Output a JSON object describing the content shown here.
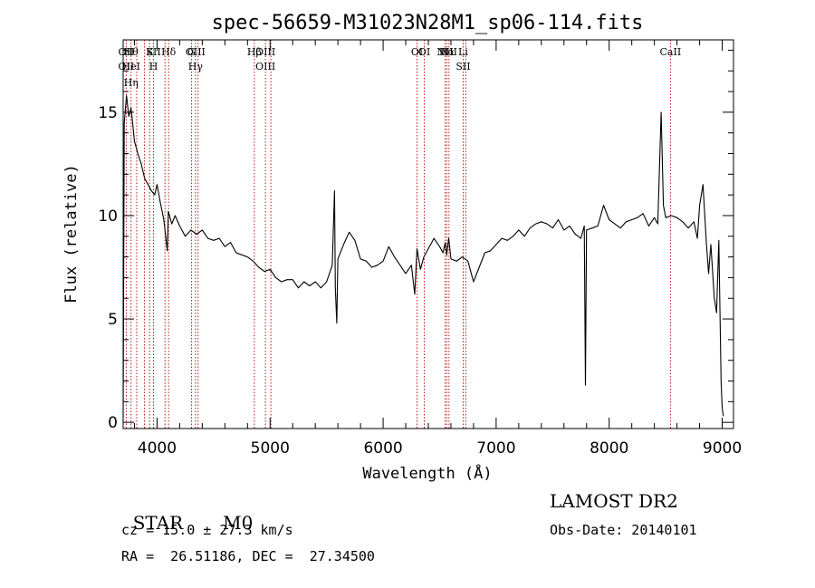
{
  "chart_data": {
    "type": "line",
    "title": "spec-56659-M31023N28M1_sp06-114.fits",
    "xlabel": "Wavelength (Å)",
    "ylabel": "Flux (relative)",
    "xlim": [
      3700,
      9100
    ],
    "ylim": [
      -0.3,
      18.5
    ],
    "x_ticks": [
      4000,
      5000,
      6000,
      7000,
      8000,
      9000
    ],
    "y_ticks": [
      0,
      5,
      10,
      15
    ],
    "series": [
      {
        "x": [
          3700,
          3710,
          3730,
          3750,
          3770,
          3800,
          3830,
          3860,
          3890,
          3920,
          3950,
          3980,
          4000,
          4030,
          4060,
          4090,
          4100,
          4130,
          4160,
          4200,
          4250,
          4300,
          4350,
          4400,
          4450,
          4500,
          4550,
          4600,
          4650,
          4700,
          4750,
          4800,
          4850,
          4900,
          4950,
          5000,
          5050,
          5100,
          5150,
          5200,
          5250,
          5300,
          5350,
          5400,
          5450,
          5500,
          5550,
          5570,
          5577,
          5590,
          5600,
          5650,
          5700,
          5750,
          5800,
          5850,
          5900,
          5950,
          6000,
          6050,
          6100,
          6150,
          6200,
          6250,
          6280,
          6300,
          6330,
          6360,
          6400,
          6450,
          6500,
          6530,
          6550,
          6563,
          6580,
          6600,
          6650,
          6700,
          6750,
          6800,
          6850,
          6900,
          6950,
          7000,
          7050,
          7100,
          7150,
          7200,
          7250,
          7300,
          7350,
          7400,
          7450,
          7500,
          7550,
          7600,
          7650,
          7700,
          7750,
          7780,
          7790,
          7800,
          7850,
          7900,
          7950,
          8000,
          8050,
          8100,
          8150,
          8200,
          8250,
          8300,
          8350,
          8400,
          8430,
          8460,
          8480,
          8500,
          8550,
          8600,
          8650,
          8700,
          8750,
          8780,
          8800,
          8830,
          8860,
          8880,
          8900,
          8930,
          8950,
          8970,
          8990,
          9000,
          9010
        ],
        "values": [
          0.2,
          14.5,
          15.8,
          14.8,
          15.2,
          13.6,
          13.0,
          12.5,
          11.8,
          11.5,
          11.2,
          11.0,
          11.5,
          10.6,
          9.8,
          8.3,
          10.2,
          9.6,
          10.0,
          9.5,
          9.0,
          9.3,
          9.1,
          9.3,
          8.9,
          8.8,
          8.9,
          8.5,
          8.7,
          8.2,
          8.1,
          8.0,
          7.8,
          7.5,
          7.3,
          7.4,
          7.0,
          6.8,
          6.9,
          6.9,
          6.5,
          6.8,
          6.6,
          6.8,
          6.5,
          6.8,
          7.6,
          11.2,
          6.5,
          4.8,
          7.9,
          8.6,
          9.2,
          8.8,
          7.9,
          7.8,
          7.5,
          7.6,
          7.8,
          8.5,
          8.0,
          7.6,
          7.2,
          7.6,
          6.2,
          8.4,
          7.4,
          8.0,
          8.4,
          8.9,
          8.5,
          8.2,
          8.7,
          8.1,
          8.9,
          7.9,
          7.8,
          8.0,
          7.8,
          6.8,
          7.5,
          8.2,
          8.3,
          8.6,
          8.9,
          8.8,
          9.0,
          9.3,
          9.0,
          9.4,
          9.6,
          9.7,
          9.6,
          9.4,
          9.8,
          9.3,
          9.5,
          9.1,
          8.9,
          9.5,
          1.8,
          9.3,
          9.4,
          9.5,
          10.5,
          9.8,
          9.6,
          9.4,
          9.7,
          9.8,
          9.9,
          10.1,
          9.5,
          9.9,
          9.6,
          15.0,
          10.5,
          9.9,
          10.0,
          9.9,
          9.7,
          9.4,
          9.7,
          8.9,
          10.5,
          11.5,
          8.7,
          7.2,
          8.6,
          6.0,
          5.3,
          8.8,
          2.0,
          0.7,
          0.3
        ]
      }
    ],
    "line_groups": [
      {
        "x": 3727,
        "labels": [
          "OII",
          "OII"
        ]
      },
      {
        "x": 3770,
        "labels": [
          "Hθ",
          "HeI",
          "Hη"
        ]
      },
      {
        "x": 3820,
        "labels": []
      },
      {
        "x": 3889,
        "labels": []
      },
      {
        "x": 3934,
        "labels": [
          "K"
        ]
      },
      {
        "x": 3969,
        "labels": [
          "SII",
          "H"
        ]
      },
      {
        "x": 4070,
        "labels": []
      },
      {
        "x": 4102,
        "labels": [
          "Hδ"
        ]
      },
      {
        "x": 4304,
        "labels": [
          "G"
        ]
      },
      {
        "x": 4340,
        "labels": [
          "OIII",
          "Hγ"
        ]
      },
      {
        "x": 4363,
        "labels": []
      },
      {
        "x": 4861,
        "labels": [
          "Hβ"
        ]
      },
      {
        "x": 4959,
        "labels": [
          "OIII",
          "OIII"
        ]
      },
      {
        "x": 5007,
        "labels": []
      },
      {
        "x": 6300,
        "labels": [
          "OI"
        ]
      },
      {
        "x": 6364,
        "labels": [
          "OI"
        ]
      },
      {
        "x": 6548,
        "labels": [
          "NII"
        ]
      },
      {
        "x": 6563,
        "labels": [
          "Hα"
        ]
      },
      {
        "x": 6583,
        "labels": [
          "NII"
        ]
      },
      {
        "x": 6708,
        "labels": [
          "Li",
          "SII"
        ]
      },
      {
        "x": 6731,
        "labels": []
      },
      {
        "x": 8542,
        "labels": [
          "CaII"
        ]
      }
    ]
  },
  "info": {
    "class_label": "STAR",
    "subclass": "M0",
    "survey": "LAMOST DR2",
    "cz": "cz = 15.0 ± 27.3 km/s",
    "obs_date": "Obs-Date: 20140101",
    "radec": "RA =  26.51186, DEC =  27.34500"
  }
}
